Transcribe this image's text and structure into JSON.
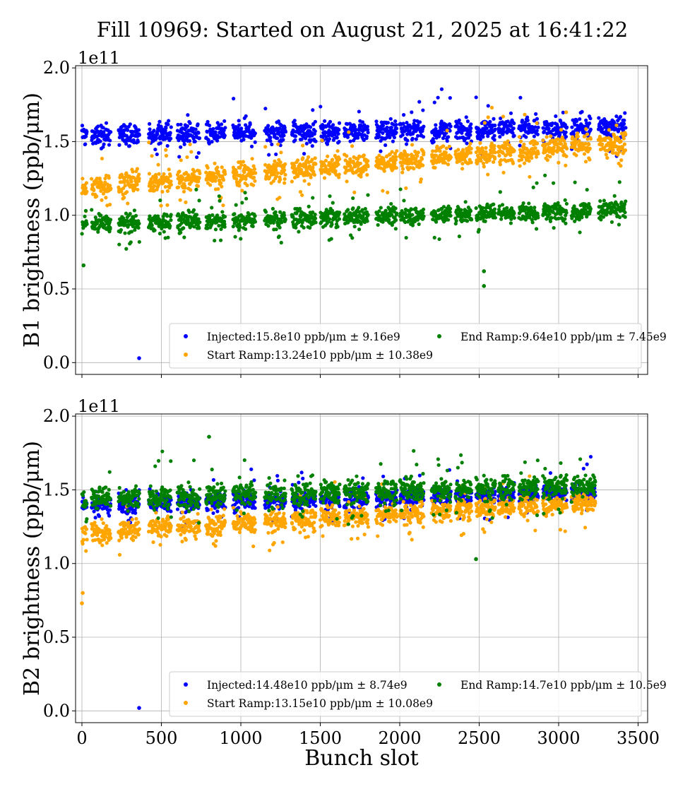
{
  "title": "Fill 10969: Started on August 21, 2025 at 16:41:22",
  "chart_data": [
    {
      "type": "scatter",
      "ylabel": "B1 brightness (ppb/μm)",
      "xlabel": "",
      "y_offset_label": "1e11",
      "xlim": [
        -40,
        3560
      ],
      "ylim": [
        -0.08,
        2.015
      ],
      "x_ticks": [
        0,
        500,
        1000,
        1500,
        2000,
        2500,
        3000,
        3500
      ],
      "y_ticks": [
        "0.0",
        "0.5",
        "1.0",
        "1.5",
        "2.0"
      ],
      "grid": true,
      "legend_position": "lower-right",
      "trains": [
        [
          0,
          30
        ],
        [
          60,
          180
        ],
        [
          230,
          360
        ],
        [
          420,
          560
        ],
        [
          600,
          740
        ],
        [
          780,
          900
        ],
        [
          950,
          1090
        ],
        [
          1150,
          1280
        ],
        [
          1320,
          1470
        ],
        [
          1500,
          1620
        ],
        [
          1650,
          1800
        ],
        [
          1850,
          1980
        ],
        [
          2000,
          2150
        ],
        [
          2200,
          2320
        ],
        [
          2350,
          2450
        ],
        [
          2480,
          2600
        ],
        [
          2620,
          2720
        ],
        [
          2750,
          2870
        ],
        [
          2900,
          3050
        ],
        [
          3080,
          3200
        ],
        [
          3250,
          3420
        ]
      ],
      "series": [
        {
          "name": "Injected",
          "legend": "Injected:15.8e10 ppb/μm ± 9.16e9",
          "color": "#0000ff",
          "mean_start": 1.54,
          "mean_end": 1.6,
          "spread": 0.09,
          "outliers": [
            [
              360,
              0.03
            ]
          ]
        },
        {
          "name": "Start Ramp",
          "legend": "Start Ramp:13.24e10 ppb/μm ± 10.38e9",
          "color": "#ffa500",
          "mean_start": 1.19,
          "mean_end": 1.5,
          "spread": 0.1,
          "outliers": []
        },
        {
          "name": "End Ramp",
          "legend": "End Ramp:9.64e10 ppb/μm ± 7.45e9",
          "color": "#008000",
          "mean_start": 0.94,
          "mean_end": 1.04,
          "spread": 0.08,
          "outliers": [
            [
              2530,
              0.52
            ],
            [
              2530,
              0.62
            ],
            [
              10,
              0.66
            ]
          ]
        }
      ]
    },
    {
      "type": "scatter",
      "ylabel": "B2 brightness (ppb/μm)",
      "xlabel": "Bunch slot",
      "y_offset_label": "1e11",
      "xlim": [
        -40,
        3560
      ],
      "ylim": [
        -0.08,
        2.015
      ],
      "x_ticks": [
        0,
        500,
        1000,
        1500,
        2000,
        2500,
        3000,
        3500
      ],
      "y_ticks": [
        "0.0",
        "0.5",
        "1.0",
        "1.5",
        "2.0"
      ],
      "grid": true,
      "legend_position": "lower-right",
      "trains": [
        [
          0,
          30
        ],
        [
          60,
          180
        ],
        [
          230,
          360
        ],
        [
          420,
          560
        ],
        [
          600,
          740
        ],
        [
          780,
          900
        ],
        [
          950,
          1090
        ],
        [
          1150,
          1280
        ],
        [
          1320,
          1470
        ],
        [
          1500,
          1620
        ],
        [
          1650,
          1800
        ],
        [
          1850,
          1980
        ],
        [
          2000,
          2150
        ],
        [
          2200,
          2320
        ],
        [
          2350,
          2450
        ],
        [
          2480,
          2600
        ],
        [
          2620,
          2720
        ],
        [
          2750,
          2870
        ],
        [
          2900,
          3050
        ],
        [
          3080,
          3230
        ]
      ],
      "series": [
        {
          "name": "Injected",
          "legend": "Injected:14.48e10 ppb/μm ± 8.74e9",
          "color": "#0000ff",
          "mean_start": 1.4,
          "mean_end": 1.48,
          "spread": 0.08,
          "outliers": [
            [
              360,
              0.02
            ]
          ]
        },
        {
          "name": "Start Ramp",
          "legend": "Start Ramp:13.15e10 ppb/μm ± 10.08e9",
          "color": "#ffa500",
          "mean_start": 1.21,
          "mean_end": 1.42,
          "spread": 0.09,
          "outliers": [
            [
              0,
              0.73
            ],
            [
              5,
              0.8
            ]
          ]
        },
        {
          "name": "End Ramp",
          "legend": "End Ramp:14.7e10 ppb/μm ± 10.5e9",
          "color": "#008000",
          "mean_start": 1.44,
          "mean_end": 1.53,
          "spread": 0.1,
          "outliers": [
            [
              800,
              1.86
            ],
            [
              2480,
              1.03
            ]
          ]
        }
      ]
    }
  ]
}
